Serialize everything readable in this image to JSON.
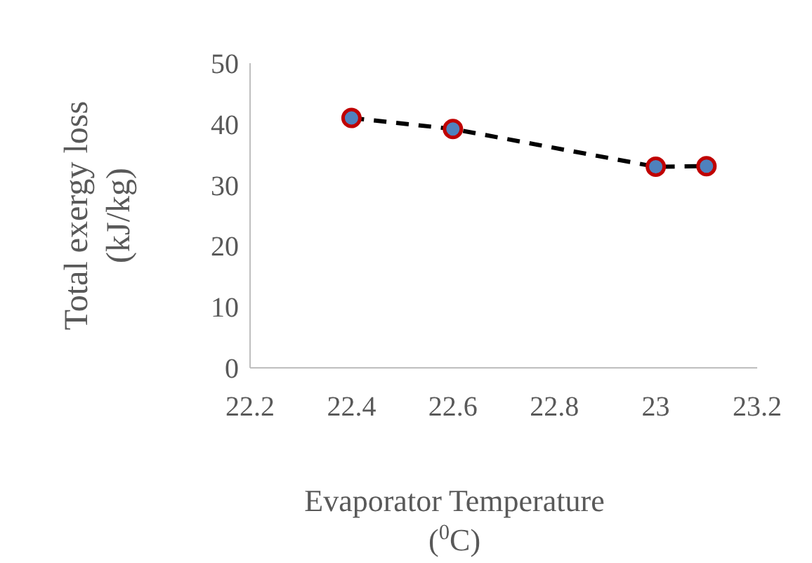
{
  "chart_data": {
    "type": "line",
    "xlabel": "Evaporator Temperature\n($^{0}$C)",
    "ylabel": "Total exergy loss\n(kJ/kg)",
    "x": [
      22.4,
      22.6,
      23.0,
      23.1
    ],
    "series": [
      {
        "values": [
          41.0,
          39.2,
          33.0,
          33.1
        ],
        "color": "#000000"
      }
    ],
    "xlim": [
      22.2,
      23.2
    ],
    "xticks": [
      22.2,
      22.4,
      22.6,
      22.8,
      23,
      23.2
    ],
    "ylim": [
      0,
      50
    ],
    "yticks": [
      0,
      10,
      20,
      30,
      40,
      50
    ],
    "grid": false,
    "marker": "circle",
    "line_style": "dashed"
  }
}
